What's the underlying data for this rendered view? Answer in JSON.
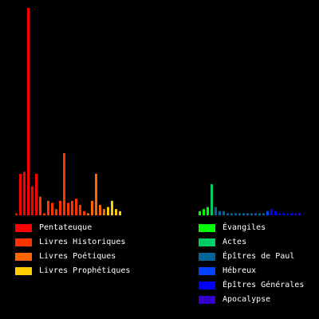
{
  "chart_data": {
    "type": "bar",
    "title": "",
    "xlabel": "",
    "ylabel": "",
    "grid": false,
    "legend_position": "bottom",
    "ylim": [
      0,
      100
    ],
    "groups": [
      {
        "name": "old-testament",
        "series": [
          {
            "name": "Pentateuque",
            "color": "#ff0000",
            "values": [
              1,
              20,
              21,
              100,
              14,
              20
            ]
          },
          {
            "name": "Livres Historiques",
            "color": "#ff3300",
            "values": [
              9,
              1,
              7,
              6,
              3,
              7,
              30,
              6,
              7,
              8,
              5,
              2
            ]
          },
          {
            "name": "Livres Poétiques",
            "color": "#ff6600",
            "values": [
              1,
              7,
              20,
              5,
              3
            ]
          },
          {
            "name": "Livres Prophétiques",
            "color": "#ffcc00",
            "values": [
              4,
              7,
              3,
              2
            ]
          }
        ]
      },
      {
        "name": "new-testament",
        "series": [
          {
            "name": "Évangiles",
            "color": "#00ff00",
            "values": [
              2,
              3,
              4
            ]
          },
          {
            "name": "Actes",
            "color": "#00cc66",
            "values": [
              15
            ]
          },
          {
            "name": "Épîtres de Paul",
            "color": "#006699",
            "values": [
              4,
              2,
              2,
              1,
              1,
              1,
              1,
              1,
              1,
              1,
              1,
              1,
              1
            ]
          },
          {
            "name": "Hébreux",
            "color": "#0044ff",
            "values": [
              2
            ]
          },
          {
            "name": "Épîtres Générales",
            "color": "#0000ff",
            "values": [
              3,
              2,
              1,
              1,
              1,
              1,
              1
            ]
          },
          {
            "name": "Apocalypse",
            "color": "#3300cc",
            "values": [
              1
            ]
          }
        ]
      }
    ]
  }
}
